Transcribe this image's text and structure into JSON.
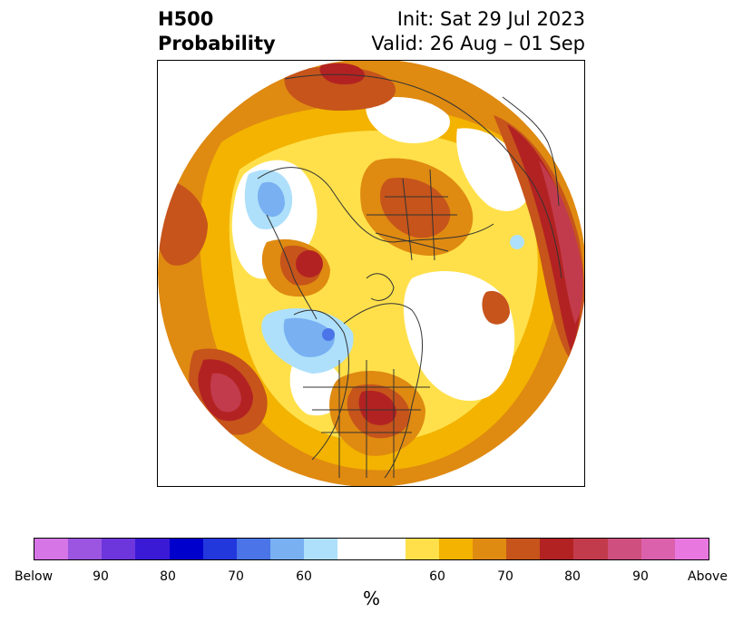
{
  "title": {
    "left_line1": "H500",
    "left_line2": "Probability",
    "right_line1": "Init: Sat 29 Jul 2023",
    "right_line2": "Valid: 26 Aug – 01 Sep"
  },
  "colorbar": {
    "segments": [
      {
        "color": "#d675e6",
        "w": 1
      },
      {
        "color": "#9b55e0",
        "w": 1
      },
      {
        "color": "#6d36dd",
        "w": 1
      },
      {
        "color": "#3b1ad6",
        "w": 1
      },
      {
        "color": "#0000cc",
        "w": 1
      },
      {
        "color": "#2238dd",
        "w": 1
      },
      {
        "color": "#4a74e8",
        "w": 1
      },
      {
        "color": "#78b0f2",
        "w": 1
      },
      {
        "color": "#aee0fb",
        "w": 1
      },
      {
        "color": "#ffffff",
        "w": 2
      },
      {
        "color": "#ffe04a",
        "w": 1
      },
      {
        "color": "#f3b300",
        "w": 1
      },
      {
        "color": "#df8a11",
        "w": 1
      },
      {
        "color": "#c6541b",
        "w": 1
      },
      {
        "color": "#b32222",
        "w": 1
      },
      {
        "color": "#c23b4c",
        "w": 1
      },
      {
        "color": "#cf4f7e",
        "w": 1
      },
      {
        "color": "#db61ad",
        "w": 1
      },
      {
        "color": "#e878e0",
        "w": 1
      }
    ],
    "tick_labels": [
      "Below",
      "90",
      "80",
      "70",
      "60",
      "60",
      "70",
      "80",
      "90",
      "Above"
    ],
    "unit": "%"
  },
  "map_colors": {
    "y1": "#ffe04a",
    "y2": "#f3b300",
    "o1": "#df8a11",
    "o2": "#c6541b",
    "r1": "#b32222",
    "r2": "#c23b4c",
    "p1": "#cf4f7e",
    "b1": "#aee0fb",
    "b2": "#78b0f2",
    "b3": "#4a74e8",
    "border": "#333333"
  }
}
